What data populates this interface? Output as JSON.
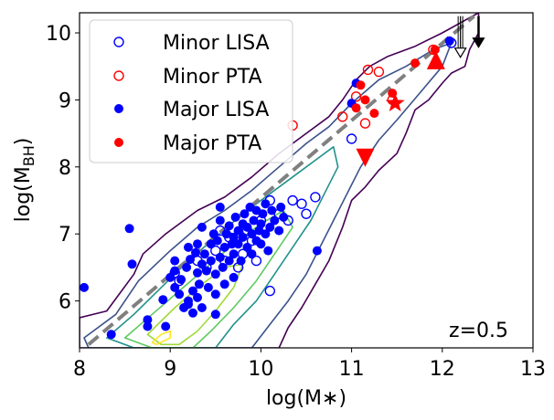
{
  "chart_data": {
    "type": "scatter",
    "title": "",
    "xlabel": "log(M∗)",
    "ylabel_main": "log(M",
    "ylabel_sub": "BH",
    "ylabel_close": ")",
    "xlim": [
      8,
      13
    ],
    "ylim": [
      5.3,
      10.3
    ],
    "xticks": [
      "8",
      "9",
      "10",
      "11",
      "12",
      "13"
    ],
    "yticks": [
      "6",
      "7",
      "8",
      "9",
      "10"
    ],
    "annotation": "z=0.5",
    "legend_position": "top-left",
    "colors": {
      "lisa": "#0000ff",
      "pta": "#ff0000",
      "relation": "#808080"
    },
    "legend": [
      {
        "label": "Minor LISA",
        "marker": "open-circle",
        "color": "#0000ff"
      },
      {
        "label": "Minor PTA",
        "marker": "open-circle",
        "color": "#ff0000"
      },
      {
        "label": "Major LISA",
        "marker": "filled-circle",
        "color": "#0000ff"
      },
      {
        "label": "Major PTA",
        "marker": "filled-circle",
        "color": "#ff0000"
      }
    ],
    "relation_line": {
      "x": [
        8.1,
        12.35
      ],
      "y": [
        5.35,
        10.25
      ],
      "style": "dashed"
    },
    "series": [
      {
        "name": "Minor LISA",
        "filled": false,
        "color": "#0000ff",
        "points": [
          [
            9.05,
            6.42
          ],
          [
            9.1,
            6.3
          ],
          [
            9.3,
            6.6
          ],
          [
            9.4,
            6.5
          ],
          [
            9.5,
            6.75
          ],
          [
            9.6,
            6.6
          ],
          [
            9.65,
            6.95
          ],
          [
            9.8,
            6.7
          ],
          [
            9.85,
            7.05
          ],
          [
            9.9,
            6.9
          ],
          [
            10.0,
            7.2
          ],
          [
            10.1,
            7.5
          ],
          [
            10.2,
            7.3
          ],
          [
            10.3,
            7.2
          ],
          [
            10.35,
            7.5
          ],
          [
            10.45,
            7.45
          ],
          [
            10.5,
            7.3
          ],
          [
            10.6,
            7.55
          ],
          [
            10.1,
            6.15
          ],
          [
            9.75,
            6.5
          ],
          [
            9.55,
            7.05
          ],
          [
            9.95,
            6.6
          ],
          [
            11.0,
            8.42
          ],
          [
            12.1,
            9.85
          ]
        ]
      },
      {
        "name": "Minor PTA",
        "filled": false,
        "color": "#ff0000",
        "points": [
          [
            10.35,
            8.62
          ],
          [
            10.9,
            8.75
          ],
          [
            11.05,
            9.05
          ],
          [
            11.15,
            8.65
          ],
          [
            11.18,
            9.45
          ],
          [
            11.3,
            9.42
          ],
          [
            11.45,
            9.0
          ],
          [
            11.9,
            9.75
          ]
        ]
      },
      {
        "name": "Major LISA",
        "filled": true,
        "color": "#0000ff",
        "points": [
          [
            8.05,
            6.2
          ],
          [
            8.35,
            5.5
          ],
          [
            8.55,
            7.08
          ],
          [
            8.58,
            6.55
          ],
          [
            8.75,
            5.72
          ],
          [
            8.75,
            5.62
          ],
          [
            8.95,
            5.62
          ],
          [
            8.92,
            6.02
          ],
          [
            9.0,
            6.35
          ],
          [
            9.05,
            6.2
          ],
          [
            9.05,
            6.45
          ],
          [
            9.1,
            6.1
          ],
          [
            9.12,
            6.32
          ],
          [
            9.15,
            5.9
          ],
          [
            9.18,
            6.5
          ],
          [
            9.2,
            6.0
          ],
          [
            9.2,
            5.95
          ],
          [
            9.22,
            6.62
          ],
          [
            9.25,
            6.15
          ],
          [
            9.25,
            5.82
          ],
          [
            9.28,
            6.72
          ],
          [
            9.3,
            6.05
          ],
          [
            9.3,
            6.42
          ],
          [
            9.3,
            6.85
          ],
          [
            9.32,
            6.25
          ],
          [
            9.35,
            6.55
          ],
          [
            9.35,
            5.9
          ],
          [
            9.38,
            6.7
          ],
          [
            9.4,
            6.45
          ],
          [
            9.42,
            6.2
          ],
          [
            9.45,
            6.85
          ],
          [
            9.45,
            6.6
          ],
          [
            9.48,
            7.0
          ],
          [
            9.5,
            6.4
          ],
          [
            9.5,
            6.1
          ],
          [
            9.5,
            5.8
          ],
          [
            9.52,
            6.9
          ],
          [
            9.55,
            6.65
          ],
          [
            9.55,
            7.2
          ],
          [
            9.58,
            6.5
          ],
          [
            9.6,
            6.8
          ],
          [
            9.6,
            6.25
          ],
          [
            9.62,
            7.0
          ],
          [
            9.65,
            6.6
          ],
          [
            9.65,
            7.12
          ],
          [
            9.68,
            6.85
          ],
          [
            9.7,
            6.7
          ],
          [
            9.7,
            6.95
          ],
          [
            9.72,
            7.25
          ],
          [
            9.75,
            6.85
          ],
          [
            9.75,
            7.05
          ],
          [
            9.78,
            6.6
          ],
          [
            9.8,
            7.15
          ],
          [
            9.8,
            6.95
          ],
          [
            9.82,
            7.3
          ],
          [
            9.85,
            6.8
          ],
          [
            9.85,
            7.1
          ],
          [
            9.88,
            7.4
          ],
          [
            9.9,
            7.0
          ],
          [
            9.9,
            6.7
          ],
          [
            9.92,
            7.2
          ],
          [
            9.95,
            6.9
          ],
          [
            9.95,
            7.35
          ],
          [
            9.98,
            7.05
          ],
          [
            10.0,
            7.15
          ],
          [
            10.0,
            6.85
          ],
          [
            10.02,
            7.3
          ],
          [
            10.05,
            7.0
          ],
          [
            10.05,
            7.45
          ],
          [
            10.08,
            6.75
          ],
          [
            10.1,
            7.1
          ],
          [
            10.12,
            7.35
          ],
          [
            10.15,
            7.2
          ],
          [
            10.2,
            7.05
          ],
          [
            10.22,
            7.4
          ],
          [
            10.25,
            7.25
          ],
          [
            9.55,
            7.4
          ],
          [
            9.2,
            6.8
          ],
          [
            9.05,
            6.6
          ],
          [
            9.35,
            7.1
          ],
          [
            9.7,
            6.35
          ],
          [
            10.62,
            6.75
          ],
          [
            11.0,
            8.95
          ],
          [
            11.05,
            9.25
          ],
          [
            12.08,
            9.88
          ]
        ]
      },
      {
        "name": "Major PTA",
        "filled": true,
        "color": "#ff0000",
        "points": [
          [
            11.05,
            8.88
          ],
          [
            11.15,
            9.0
          ],
          [
            11.25,
            8.8
          ],
          [
            11.1,
            9.22
          ],
          [
            11.45,
            9.1
          ],
          [
            11.7,
            9.55
          ],
          [
            11.92,
            9.75
          ]
        ]
      }
    ],
    "extra_markers": [
      {
        "kind": "triangle-down",
        "x": 11.15,
        "y": 8.15,
        "color": "#ff0000"
      },
      {
        "kind": "star",
        "x": 11.48,
        "y": 8.95,
        "color": "#ff0000"
      },
      {
        "kind": "triangle-up",
        "x": 11.93,
        "y": 9.58,
        "color": "#ff0000"
      },
      {
        "kind": "arrow-down-open",
        "x": 12.2,
        "y_from": 10.25,
        "y_to": 9.65,
        "color": "#000000"
      },
      {
        "kind": "arrow-down-filled",
        "x": 12.4,
        "y_from": 10.25,
        "y_to": 9.8,
        "color": "#000000"
      }
    ],
    "contours": [
      {
        "color": "#440154",
        "points": [
          [
            8.0,
            5.75
          ],
          [
            8.3,
            5.85
          ],
          [
            8.6,
            6.4
          ],
          [
            8.7,
            6.7
          ],
          [
            8.95,
            7.0
          ],
          [
            9.3,
            7.35
          ],
          [
            9.6,
            7.55
          ],
          [
            9.9,
            7.85
          ],
          [
            10.2,
            8.2
          ],
          [
            10.5,
            8.5
          ],
          [
            10.75,
            8.75
          ],
          [
            10.9,
            9.0
          ],
          [
            11.05,
            9.3
          ],
          [
            11.2,
            9.5
          ],
          [
            11.4,
            9.65
          ],
          [
            11.7,
            9.8
          ],
          [
            12.0,
            10.0
          ],
          [
            12.4,
            10.3
          ],
          [
            12.4,
            10.0
          ],
          [
            12.3,
            9.75
          ],
          [
            12.25,
            9.5
          ],
          [
            12.1,
            9.4
          ],
          [
            12.0,
            9.25
          ],
          [
            11.85,
            9.0
          ],
          [
            11.7,
            8.85
          ],
          [
            11.6,
            8.5
          ],
          [
            11.5,
            8.2
          ],
          [
            11.3,
            7.95
          ],
          [
            11.15,
            7.7
          ],
          [
            11.0,
            7.5
          ],
          [
            10.9,
            7.1
          ],
          [
            10.75,
            6.6
          ],
          [
            10.6,
            6.25
          ],
          [
            10.45,
            5.9
          ],
          [
            10.3,
            5.6
          ],
          [
            10.2,
            5.3
          ],
          [
            8.0,
            5.3
          ]
        ]
      },
      {
        "color": "#3b528b",
        "points": [
          [
            8.05,
            5.45
          ],
          [
            8.4,
            5.8
          ],
          [
            8.65,
            6.3
          ],
          [
            9.0,
            6.75
          ],
          [
            9.3,
            7.1
          ],
          [
            9.6,
            7.35
          ],
          [
            9.9,
            7.65
          ],
          [
            10.2,
            8.0
          ],
          [
            10.5,
            8.35
          ],
          [
            10.75,
            8.6
          ],
          [
            11.0,
            8.95
          ],
          [
            11.3,
            9.3
          ],
          [
            11.6,
            9.5
          ],
          [
            11.9,
            9.75
          ],
          [
            12.1,
            9.85
          ],
          [
            12.0,
            9.5
          ],
          [
            11.75,
            9.1
          ],
          [
            11.5,
            8.7
          ],
          [
            11.3,
            8.4
          ],
          [
            11.1,
            8.0
          ],
          [
            10.95,
            7.6
          ],
          [
            10.8,
            7.2
          ],
          [
            10.65,
            6.8
          ],
          [
            10.5,
            6.4
          ],
          [
            10.3,
            6.0
          ],
          [
            10.1,
            5.65
          ],
          [
            9.9,
            5.3
          ],
          [
            8.1,
            5.3
          ]
        ]
      },
      {
        "color": "#21918c",
        "points": [
          [
            8.3,
            5.45
          ],
          [
            8.6,
            5.8
          ],
          [
            8.9,
            6.2
          ],
          [
            9.2,
            6.6
          ],
          [
            9.5,
            6.95
          ],
          [
            9.8,
            7.3
          ],
          [
            10.1,
            7.6
          ],
          [
            10.4,
            7.9
          ],
          [
            10.6,
            8.1
          ],
          [
            10.8,
            8.3
          ],
          [
            10.85,
            8.0
          ],
          [
            10.7,
            7.6
          ],
          [
            10.55,
            7.2
          ],
          [
            10.35,
            6.8
          ],
          [
            10.15,
            6.4
          ],
          [
            9.95,
            6.0
          ],
          [
            9.7,
            5.65
          ],
          [
            9.5,
            5.3
          ],
          [
            8.6,
            5.3
          ]
        ]
      },
      {
        "color": "#5ec962",
        "points": [
          [
            8.5,
            5.45
          ],
          [
            8.8,
            5.8
          ],
          [
            9.1,
            6.15
          ],
          [
            9.4,
            6.5
          ],
          [
            9.7,
            6.85
          ],
          [
            10.0,
            7.15
          ],
          [
            10.25,
            7.35
          ],
          [
            10.35,
            7.1
          ],
          [
            10.15,
            6.7
          ],
          [
            9.95,
            6.3
          ],
          [
            9.7,
            5.9
          ],
          [
            9.45,
            5.55
          ],
          [
            9.25,
            5.3
          ],
          [
            8.8,
            5.3
          ]
        ]
      },
      {
        "color": "#a0da39",
        "points": [
          [
            8.75,
            5.5
          ],
          [
            9.05,
            5.9
          ],
          [
            9.35,
            6.25
          ],
          [
            9.6,
            6.5
          ],
          [
            9.8,
            6.55
          ],
          [
            9.7,
            6.2
          ],
          [
            9.5,
            5.85
          ],
          [
            9.3,
            5.55
          ],
          [
            9.1,
            5.35
          ],
          [
            8.9,
            5.35
          ]
        ]
      },
      {
        "color": "#fde725",
        "points": [
          [
            8.85,
            5.35
          ],
          [
            9.0,
            5.45
          ],
          [
            9.0,
            5.55
          ],
          [
            8.9,
            5.5
          ],
          [
            8.8,
            5.38
          ]
        ]
      }
    ]
  }
}
